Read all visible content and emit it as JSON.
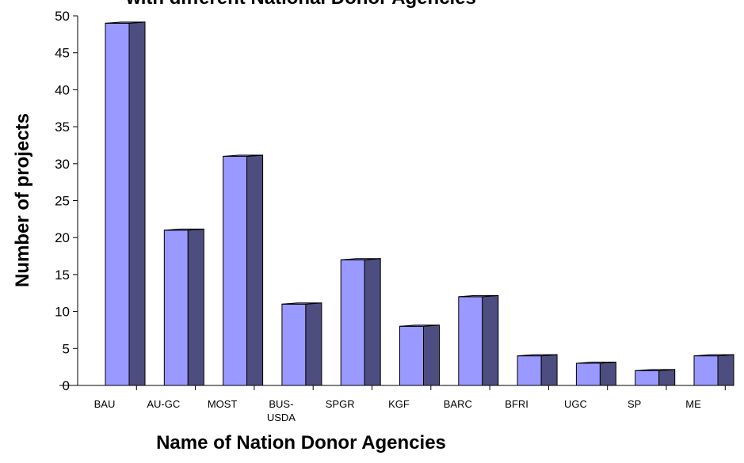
{
  "chart_data": {
    "type": "bar3d",
    "title": "with different National Donor Agencies",
    "x_label": "Name of Nation Donor Agencies",
    "y_label": "Number of projects",
    "categories": [
      "BAU",
      "AU-GC",
      "MOST",
      "BUS-USDA",
      "SPGR",
      "KGF",
      "BARC",
      "BFRI",
      "UGC",
      "SP",
      "ME"
    ],
    "values": [
      49,
      21,
      31,
      11,
      17,
      8,
      12,
      4,
      3,
      2,
      4
    ],
    "color": "#9999ff",
    "side_color": "#4d4d80",
    "ylim": [
      0,
      50
    ],
    "yticks": [
      0,
      5,
      10,
      15,
      20,
      25,
      30,
      35,
      40,
      45,
      50
    ]
  }
}
